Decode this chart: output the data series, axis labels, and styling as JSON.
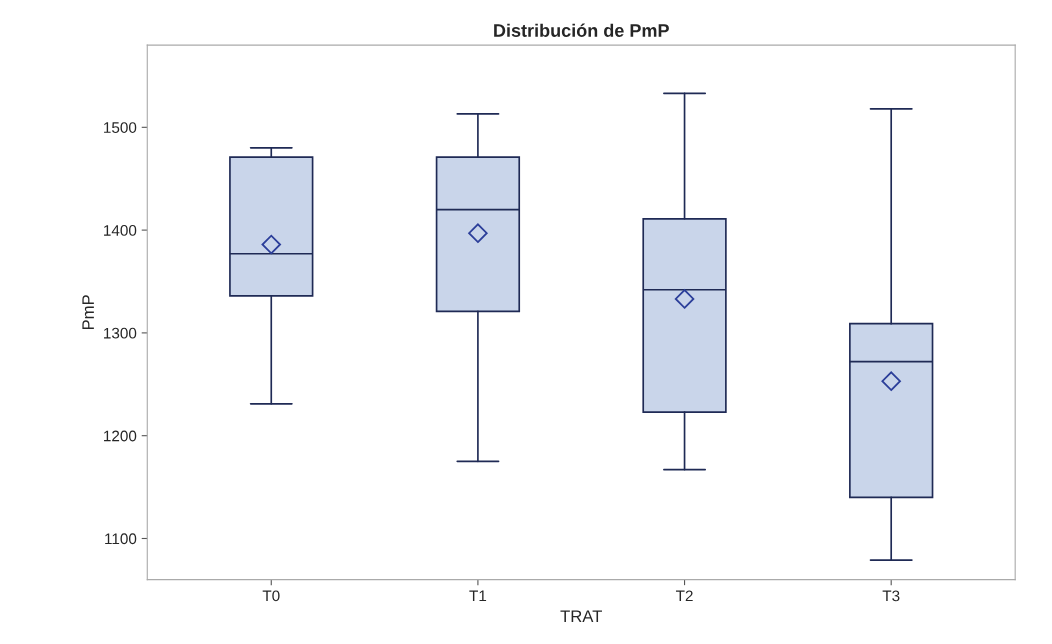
{
  "chart_data": {
    "type": "box",
    "title": "Distribución de PmP",
    "xlabel": "TRAT",
    "ylabel": "PmP",
    "categories": [
      "T0",
      "T1",
      "T2",
      "T3"
    ],
    "boxes": [
      {
        "low": 1231,
        "q1": 1336,
        "median": 1377,
        "q3": 1471,
        "high": 1480,
        "mean": 1386
      },
      {
        "low": 1175,
        "q1": 1321,
        "median": 1420,
        "q3": 1471,
        "high": 1513,
        "mean": 1397
      },
      {
        "low": 1167,
        "q1": 1223,
        "median": 1342,
        "q3": 1411,
        "high": 1533,
        "mean": 1333
      },
      {
        "low": 1079,
        "q1": 1140,
        "median": 1272,
        "q3": 1309,
        "high": 1518,
        "mean": 1253
      }
    ],
    "color": "#c9d5ea",
    "marker": "diamond",
    "ylim": [
      1060,
      1580
    ],
    "yticks": [
      1100,
      1200,
      1300,
      1400,
      1500
    ],
    "grid": false
  }
}
